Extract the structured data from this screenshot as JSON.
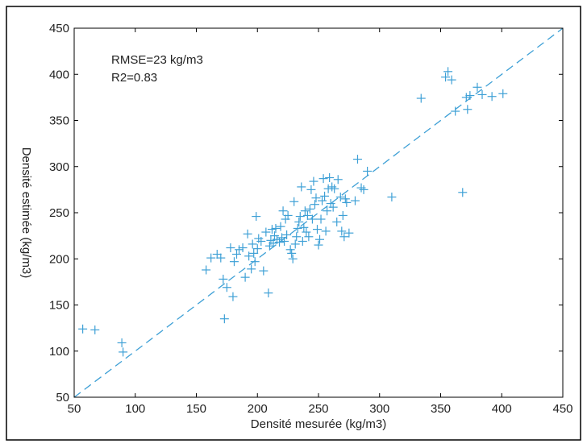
{
  "chart_data": {
    "type": "scatter",
    "xlabel": "Densité mesurée (kg/m3)",
    "ylabel": "Densité estimée (kg/m3)",
    "xlim": [
      50,
      450
    ],
    "ylim": [
      50,
      450
    ],
    "xticks": [
      50,
      100,
      150,
      200,
      250,
      300,
      350,
      400,
      450
    ],
    "yticks": [
      50,
      100,
      150,
      200,
      250,
      300,
      350,
      400,
      450
    ],
    "annotations": [
      "RMSE=23 kg/m3",
      "R2=0.83"
    ],
    "grid": false,
    "colors": {
      "marker": "#3ea0d6",
      "line": "#3ea0d6",
      "axis": "#000000",
      "text": "#222222"
    },
    "fit_line": {
      "style": "dashed",
      "from": [
        50,
        50
      ],
      "to": [
        450,
        450
      ]
    },
    "points": [
      [
        57,
        124
      ],
      [
        67,
        123
      ],
      [
        89,
        109
      ],
      [
        90,
        99
      ],
      [
        158,
        188
      ],
      [
        162,
        201
      ],
      [
        167,
        205
      ],
      [
        170,
        201
      ],
      [
        172,
        178
      ],
      [
        173,
        135
      ],
      [
        175,
        169
      ],
      [
        178,
        212
      ],
      [
        180,
        159
      ],
      [
        181,
        197
      ],
      [
        183,
        205
      ],
      [
        185,
        210
      ],
      [
        188,
        212
      ],
      [
        190,
        180
      ],
      [
        192,
        227
      ],
      [
        193,
        203
      ],
      [
        195,
        189
      ],
      [
        196,
        216
      ],
      [
        197,
        206
      ],
      [
        198,
        197
      ],
      [
        199,
        246
      ],
      [
        200,
        211
      ],
      [
        201,
        222
      ],
      [
        203,
        219
      ],
      [
        205,
        187
      ],
      [
        207,
        229
      ],
      [
        209,
        163
      ],
      [
        210,
        214
      ],
      [
        211,
        220
      ],
      [
        212,
        232
      ],
      [
        213,
        217
      ],
      [
        214,
        225
      ],
      [
        215,
        233
      ],
      [
        216,
        221
      ],
      [
        218,
        218
      ],
      [
        219,
        235
      ],
      [
        220,
        223
      ],
      [
        221,
        252
      ],
      [
        222,
        219
      ],
      [
        223,
        243
      ],
      [
        224,
        226
      ],
      [
        225,
        247
      ],
      [
        227,
        210
      ],
      [
        228,
        206
      ],
      [
        229,
        200
      ],
      [
        230,
        262
      ],
      [
        231,
        216
      ],
      [
        232,
        224
      ],
      [
        233,
        233
      ],
      [
        234,
        240
      ],
      [
        235,
        246
      ],
      [
        236,
        278
      ],
      [
        237,
        219
      ],
      [
        238,
        234
      ],
      [
        239,
        252
      ],
      [
        240,
        229
      ],
      [
        241,
        247
      ],
      [
        242,
        224
      ],
      [
        243,
        254
      ],
      [
        244,
        275
      ],
      [
        245,
        243
      ],
      [
        246,
        284
      ],
      [
        247,
        259
      ],
      [
        248,
        266
      ],
      [
        249,
        232
      ],
      [
        250,
        215
      ],
      [
        251,
        221
      ],
      [
        252,
        243
      ],
      [
        253,
        263
      ],
      [
        254,
        287
      ],
      [
        255,
        268
      ],
      [
        256,
        230
      ],
      [
        257,
        252
      ],
      [
        258,
        276
      ],
      [
        259,
        288
      ],
      [
        260,
        260
      ],
      [
        261,
        278
      ],
      [
        262,
        256
      ],
      [
        263,
        276
      ],
      [
        265,
        240
      ],
      [
        266,
        286
      ],
      [
        268,
        267
      ],
      [
        269,
        230
      ],
      [
        270,
        247
      ],
      [
        271,
        224
      ],
      [
        272,
        265
      ],
      [
        273,
        261
      ],
      [
        275,
        228
      ],
      [
        280,
        263
      ],
      [
        282,
        308
      ],
      [
        285,
        277
      ],
      [
        287,
        275
      ],
      [
        290,
        295
      ],
      [
        310,
        267
      ],
      [
        334,
        374
      ],
      [
        354,
        397
      ],
      [
        356,
        403
      ],
      [
        359,
        394
      ],
      [
        362,
        360
      ],
      [
        368,
        272
      ],
      [
        371,
        375
      ],
      [
        372,
        362
      ],
      [
        374,
        377
      ],
      [
        380,
        386
      ],
      [
        384,
        378
      ],
      [
        392,
        376
      ],
      [
        401,
        379
      ]
    ]
  }
}
